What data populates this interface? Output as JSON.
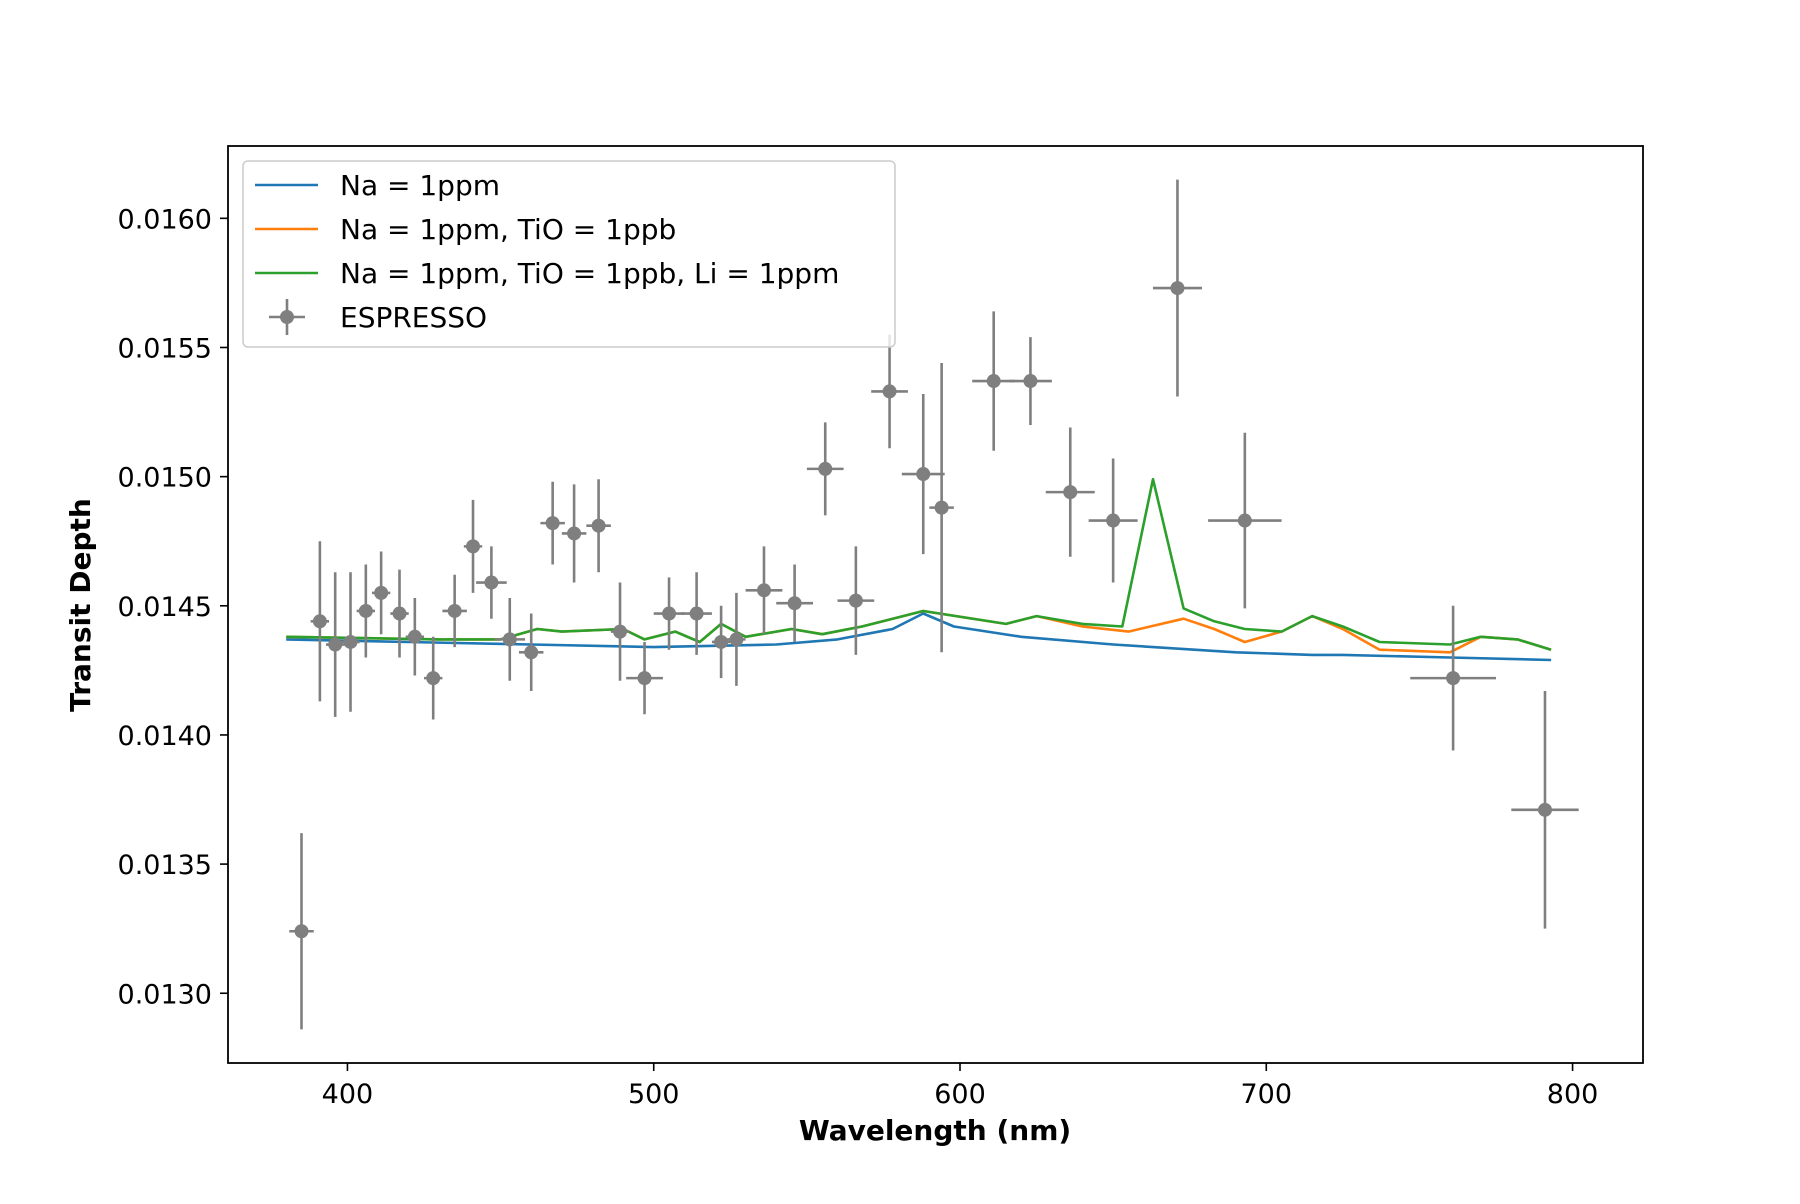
{
  "chart_data": {
    "type": "scatter",
    "title": "",
    "xlabel": "Wavelength (nm)",
    "ylabel": "Transit Depth",
    "xlim": [
      361,
      823
    ],
    "ylim": [
      0.01273,
      0.01628
    ],
    "x_ticks": [
      {
        "value": 400,
        "label": "400"
      },
      {
        "value": 500,
        "label": "500"
      },
      {
        "value": 600,
        "label": "600"
      },
      {
        "value": 700,
        "label": "700"
      },
      {
        "value": 800,
        "label": "800"
      }
    ],
    "y_ticks": [
      {
        "value": 0.013,
        "label": "0.0130"
      },
      {
        "value": 0.0135,
        "label": "0.0135"
      },
      {
        "value": 0.014,
        "label": "0.0140"
      },
      {
        "value": 0.0145,
        "label": "0.0145"
      },
      {
        "value": 0.015,
        "label": "0.0150"
      },
      {
        "value": 0.0155,
        "label": "0.0155"
      },
      {
        "value": 0.016,
        "label": "0.0160"
      }
    ],
    "grid": false,
    "legend_position": "upper-left",
    "series": [
      {
        "name": "Na = 1ppm",
        "kind": "line",
        "color": "#1f77b4",
        "x": [
          380,
          420,
          460,
          500,
          540,
          560,
          578,
          588,
          598,
          620,
          650,
          690,
          715,
          725,
          760,
          793
        ],
        "y": [
          0.01437,
          0.01436,
          0.01435,
          0.01434,
          0.01435,
          0.01437,
          0.01441,
          0.01447,
          0.01442,
          0.01438,
          0.01435,
          0.01432,
          0.01431,
          0.01431,
          0.0143,
          0.01429
        ]
      },
      {
        "name": "Na = 1ppm, TiO = 1ppb",
        "kind": "line",
        "color": "#ff7f0e",
        "x": [
          380,
          430,
          450,
          462,
          470,
          490,
          497,
          507,
          515,
          522,
          530,
          545,
          555,
          568,
          588,
          615,
          625,
          640,
          655,
          673,
          683,
          693,
          705,
          715,
          725,
          737,
          760,
          770,
          782,
          793
        ],
        "y": [
          0.01438,
          0.01437,
          0.01437,
          0.01441,
          0.0144,
          0.01441,
          0.01437,
          0.0144,
          0.01436,
          0.01443,
          0.01438,
          0.01441,
          0.01439,
          0.01442,
          0.01448,
          0.01443,
          0.01446,
          0.01442,
          0.0144,
          0.01445,
          0.01441,
          0.01436,
          0.0144,
          0.01446,
          0.01441,
          0.01433,
          0.01432,
          0.01438,
          0.01437,
          0.01433
        ]
      },
      {
        "name": "Na = 1ppm, TiO = 1ppb, Li = 1ppm",
        "kind": "line",
        "color": "#2ca02c",
        "x": [
          380,
          430,
          450,
          462,
          470,
          490,
          497,
          507,
          515,
          522,
          530,
          545,
          555,
          568,
          588,
          615,
          625,
          640,
          653,
          663,
          673,
          683,
          693,
          705,
          715,
          725,
          737,
          760,
          770,
          782,
          793
        ],
        "y": [
          0.01438,
          0.01437,
          0.01437,
          0.01441,
          0.0144,
          0.01441,
          0.01437,
          0.0144,
          0.01436,
          0.01443,
          0.01438,
          0.01441,
          0.01439,
          0.01442,
          0.01448,
          0.01443,
          0.01446,
          0.01443,
          0.01442,
          0.01499,
          0.01449,
          0.01444,
          0.01441,
          0.0144,
          0.01446,
          0.01442,
          0.01436,
          0.01435,
          0.01438,
          0.01437,
          0.01433
        ]
      },
      {
        "name": "ESPRESSO",
        "kind": "errorbar",
        "color": "#7f7f7f",
        "points": [
          {
            "x": 385,
            "y": 0.01324,
            "xerr": 4,
            "yerr": 0.00038
          },
          {
            "x": 391,
            "y": 0.01444,
            "xerr": 3,
            "yerr": 0.00031
          },
          {
            "x": 396,
            "y": 0.01435,
            "xerr": 3,
            "yerr": 0.00028
          },
          {
            "x": 401,
            "y": 0.01436,
            "xerr": 3,
            "yerr": 0.00027
          },
          {
            "x": 406,
            "y": 0.01448,
            "xerr": 3,
            "yerr": 0.00018
          },
          {
            "x": 411,
            "y": 0.01455,
            "xerr": 3,
            "yerr": 0.00016
          },
          {
            "x": 417,
            "y": 0.01447,
            "xerr": 3,
            "yerr": 0.00017
          },
          {
            "x": 422,
            "y": 0.01438,
            "xerr": 3,
            "yerr": 0.00015
          },
          {
            "x": 428,
            "y": 0.01422,
            "xerr": 3,
            "yerr": 0.00016
          },
          {
            "x": 435,
            "y": 0.01448,
            "xerr": 4,
            "yerr": 0.00014
          },
          {
            "x": 441,
            "y": 0.01473,
            "xerr": 3,
            "yerr": 0.00018
          },
          {
            "x": 447,
            "y": 0.01459,
            "xerr": 5,
            "yerr": 0.00014
          },
          {
            "x": 453,
            "y": 0.01437,
            "xerr": 5,
            "yerr": 0.00016
          },
          {
            "x": 460,
            "y": 0.01432,
            "xerr": 4,
            "yerr": 0.00015
          },
          {
            "x": 467,
            "y": 0.01482,
            "xerr": 4,
            "yerr": 0.00016
          },
          {
            "x": 474,
            "y": 0.01478,
            "xerr": 4,
            "yerr": 0.00019
          },
          {
            "x": 482,
            "y": 0.01481,
            "xerr": 4,
            "yerr": 0.00018
          },
          {
            "x": 489,
            "y": 0.0144,
            "xerr": 3,
            "yerr": 0.00019
          },
          {
            "x": 497,
            "y": 0.01422,
            "xerr": 6,
            "yerr": 0.00014
          },
          {
            "x": 505,
            "y": 0.01447,
            "xerr": 5,
            "yerr": 0.00014
          },
          {
            "x": 514,
            "y": 0.01447,
            "xerr": 5,
            "yerr": 0.00016
          },
          {
            "x": 522,
            "y": 0.01436,
            "xerr": 3,
            "yerr": 0.00014
          },
          {
            "x": 527,
            "y": 0.01437,
            "xerr": 3,
            "yerr": 0.00018
          },
          {
            "x": 536,
            "y": 0.01456,
            "xerr": 6,
            "yerr": 0.00017
          },
          {
            "x": 546,
            "y": 0.01451,
            "xerr": 6,
            "yerr": 0.00015
          },
          {
            "x": 556,
            "y": 0.01503,
            "xerr": 6,
            "yerr": 0.00018
          },
          {
            "x": 566,
            "y": 0.01452,
            "xerr": 6,
            "yerr": 0.00021
          },
          {
            "x": 577,
            "y": 0.01533,
            "xerr": 6,
            "yerr": 0.00022
          },
          {
            "x": 588,
            "y": 0.01501,
            "xerr": 7,
            "yerr": 0.00031
          },
          {
            "x": 594,
            "y": 0.01488,
            "xerr": 4,
            "yerr": 0.00056
          },
          {
            "x": 611,
            "y": 0.01537,
            "xerr": 7,
            "yerr": 0.00027
          },
          {
            "x": 623,
            "y": 0.01537,
            "xerr": 7,
            "yerr": 0.00017
          },
          {
            "x": 636,
            "y": 0.01494,
            "xerr": 8,
            "yerr": 0.00025
          },
          {
            "x": 650,
            "y": 0.01483,
            "xerr": 8,
            "yerr": 0.00024
          },
          {
            "x": 671,
            "y": 0.01573,
            "xerr": 8,
            "yerr": 0.00042
          },
          {
            "x": 693,
            "y": 0.01483,
            "xerr": 12,
            "yerr": 0.00034
          },
          {
            "x": 761,
            "y": 0.01422,
            "xerr": 14,
            "yerr": 0.00028
          },
          {
            "x": 791,
            "y": 0.01371,
            "xerr": 11,
            "yerr": 0.00046
          }
        ]
      }
    ]
  }
}
